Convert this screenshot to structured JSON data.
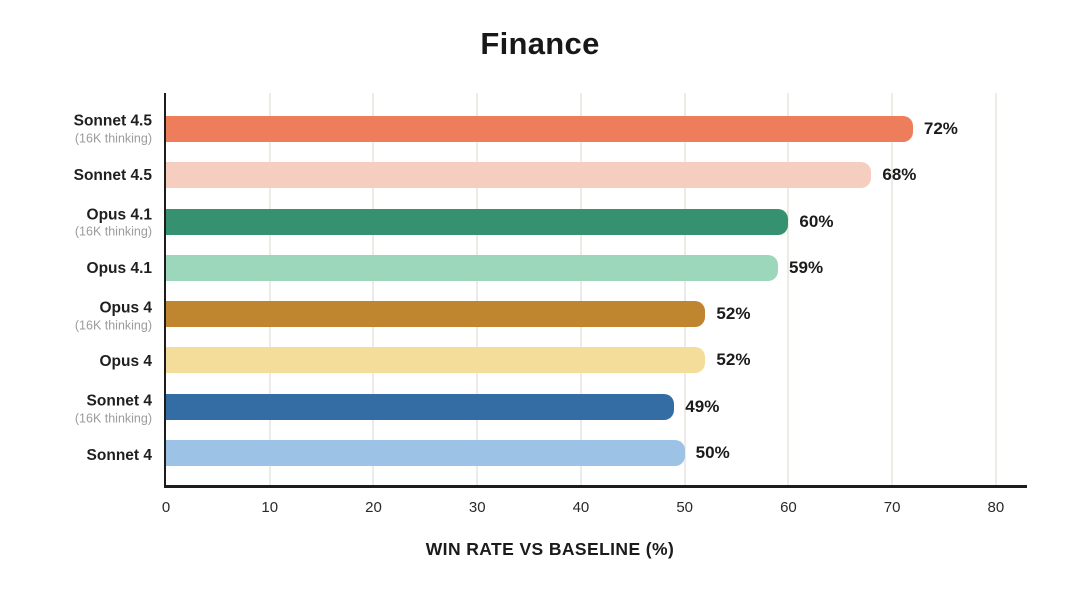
{
  "page": {
    "title": "Finance"
  },
  "style": {
    "background": "#ffffff",
    "grid_color": "#edebe5",
    "axis_color": "#1c1c1c",
    "label_color": "#1f1f1f",
    "sublabel_color": "#9b9b9b",
    "value_label_color": "#1b1b1b"
  },
  "chart_data": {
    "type": "bar",
    "orientation": "horizontal",
    "title": "Finance",
    "xlabel": "WIN RATE VS BASELINE (%)",
    "ylabel": "",
    "xlim": [
      0,
      83
    ],
    "xticks": [
      0,
      10,
      20,
      30,
      40,
      50,
      60,
      70,
      80
    ],
    "grid": true,
    "legend": false,
    "categories": [
      "Sonnet 4.5 (16K thinking)",
      "Sonnet 4.5",
      "Opus 4.1 (16K thinking)",
      "Opus 4.1",
      "Opus 4 (16K thinking)",
      "Opus 4",
      "Sonnet 4 (16K thinking)",
      "Sonnet 4"
    ],
    "values": [
      72,
      68,
      60,
      59,
      52,
      52,
      49,
      50
    ],
    "rows": [
      {
        "label": "Sonnet 4.5",
        "sublabel": "(16K thinking)",
        "value": 72,
        "value_label": "72%",
        "color": "#ED7D5B"
      },
      {
        "label": "Sonnet 4.5",
        "sublabel": "",
        "value": 68,
        "value_label": "68%",
        "color": "#F5CEC0"
      },
      {
        "label": "Opus 4.1",
        "sublabel": "(16K thinking)",
        "value": 60,
        "value_label": "60%",
        "color": "#35916F"
      },
      {
        "label": "Opus 4.1",
        "sublabel": "",
        "value": 59,
        "value_label": "59%",
        "color": "#9CD6BB"
      },
      {
        "label": "Opus 4",
        "sublabel": "(16K thinking)",
        "value": 52,
        "value_label": "52%",
        "color": "#C0862F"
      },
      {
        "label": "Opus 4",
        "sublabel": "",
        "value": 52,
        "value_label": "52%",
        "color": "#F4DC9B"
      },
      {
        "label": "Sonnet 4",
        "sublabel": "(16K thinking)",
        "value": 49,
        "value_label": "49%",
        "color": "#336DA4"
      },
      {
        "label": "Sonnet 4",
        "sublabel": "",
        "value": 50,
        "value_label": "50%",
        "color": "#9CC2E5"
      }
    ]
  }
}
